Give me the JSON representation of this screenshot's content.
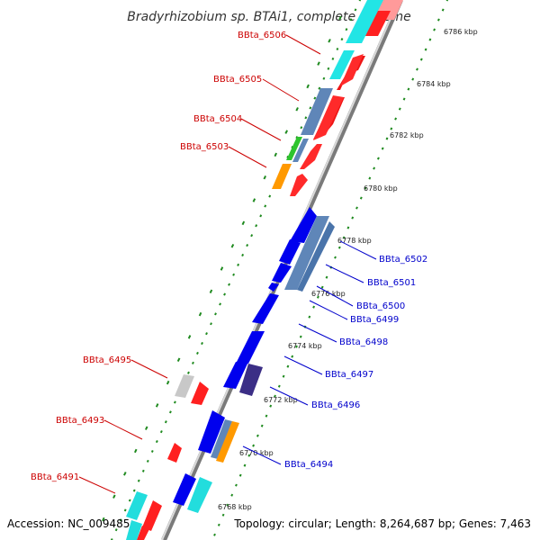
{
  "title": "Bradyrhizobium sp. BTAi1, complete genome",
  "footer": {
    "accession": "Accession: NC_009485",
    "topology": "Topology: circular; Length: 8,264,687 bp; Genes: 7,463"
  },
  "colors": {
    "backbone": "#8a8a8a",
    "tick": "#1f8a1f",
    "left_label": "#cc0000",
    "right_label": "#0000cc"
  },
  "scale_labels": [
    "6786 kbp",
    "6784 kbp",
    "6782 kbp",
    "6780 kbp",
    "6778 kbp",
    "6776 kbp",
    "6774 kbp",
    "6772 kbp",
    "6770 kbp",
    "6768 kbp"
  ],
  "left_genes": [
    "BBta_6506",
    "BBta_6505",
    "BBta_6504",
    "BBta_6503",
    "BBta_6495",
    "BBta_6493",
    "BBta_6491"
  ],
  "right_genes": [
    "BBta_6502",
    "BBta_6501",
    "BBta_6500",
    "BBta_6499",
    "BBta_6498",
    "BBta_6497",
    "BBta_6496",
    "BBta_6494"
  ]
}
